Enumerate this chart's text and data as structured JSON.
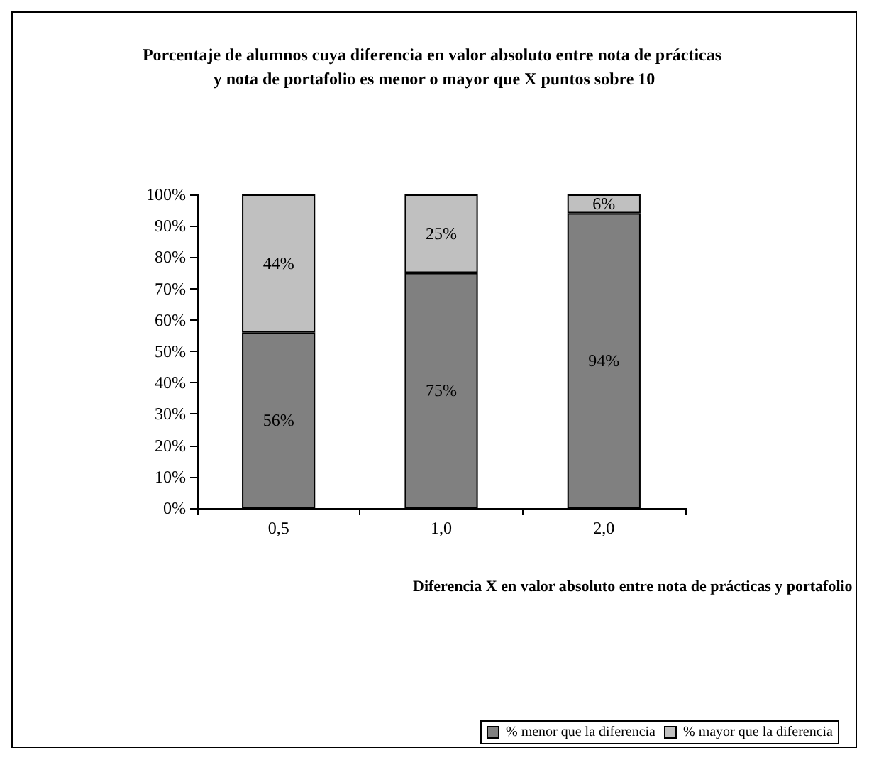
{
  "chart_data": {
    "type": "bar",
    "stacked": true,
    "title": "Porcentaje de alumnos cuya diferencia en valor absoluto entre nota de prácticas y nota de portafolio es menor o mayor que X puntos sobre 10",
    "xlabel": "Diferencia X en valor absoluto entre nota de prácticas y portafolio",
    "categories": [
      "0,5",
      "1,0",
      "2,0"
    ],
    "series": [
      {
        "name": "% menor que la diferencia",
        "color": "#808080",
        "values": [
          56,
          75,
          94
        ],
        "value_labels": [
          "56%",
          "75%",
          "94%"
        ]
      },
      {
        "name": "% mayor que la diferencia",
        "color": "#c0c0c0",
        "values": [
          44,
          25,
          6
        ],
        "value_labels": [
          "44%",
          "25%",
          "6%"
        ]
      }
    ],
    "ylim": [
      0,
      100
    ],
    "yticks": [
      {
        "value": 0,
        "label": "0%"
      },
      {
        "value": 10,
        "label": "10%"
      },
      {
        "value": 20,
        "label": "20%"
      },
      {
        "value": 30,
        "label": "30%"
      },
      {
        "value": 40,
        "label": "40%"
      },
      {
        "value": 50,
        "label": "50%"
      },
      {
        "value": 60,
        "label": "60%"
      },
      {
        "value": 70,
        "label": "70%"
      },
      {
        "value": 80,
        "label": "80%"
      },
      {
        "value": 90,
        "label": "90%"
      },
      {
        "value": 100,
        "label": "100%"
      }
    ],
    "grid": false,
    "legend": "bottom right"
  }
}
